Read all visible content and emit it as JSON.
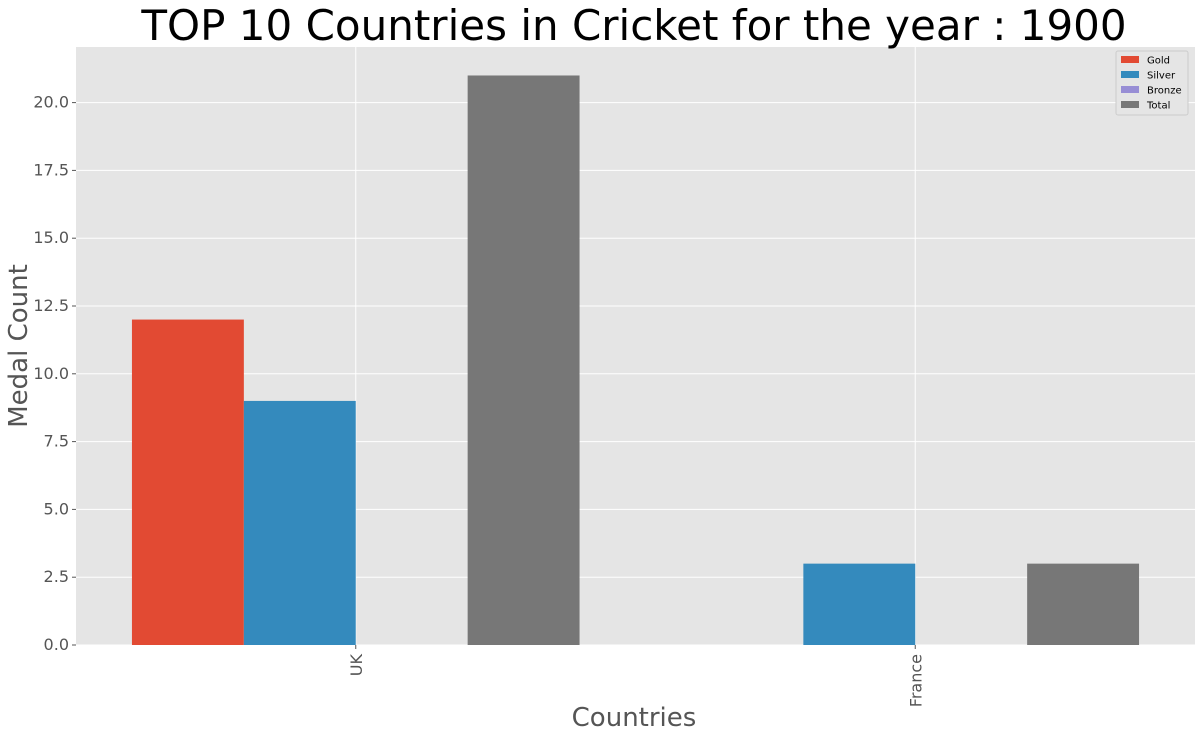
{
  "chart_data": {
    "type": "bar",
    "title": "TOP 10 Countries in Cricket for the year : 1900",
    "xlabel": "Countries",
    "ylabel": "Medal Count",
    "categories": [
      "UK",
      "France"
    ],
    "series": [
      {
        "name": "Gold",
        "values": [
          12,
          0
        ],
        "color": "#E24A33"
      },
      {
        "name": "Silver",
        "values": [
          9,
          3
        ],
        "color": "#348ABD"
      },
      {
        "name": "Bronze",
        "values": [
          0,
          0
        ],
        "color": "#988ED5"
      },
      {
        "name": "Total",
        "values": [
          21,
          3
        ],
        "color": "#777777"
      }
    ],
    "ylim": [
      0,
      22.05
    ],
    "yticks": [
      "0.0",
      "2.5",
      "5.0",
      "7.5",
      "10.0",
      "12.5",
      "15.0",
      "17.5",
      "20.0"
    ],
    "grid": true,
    "legend_position": "top-right",
    "style": {
      "plot_background": "#E5E5E5",
      "grid_color": "#FFFFFF"
    }
  }
}
